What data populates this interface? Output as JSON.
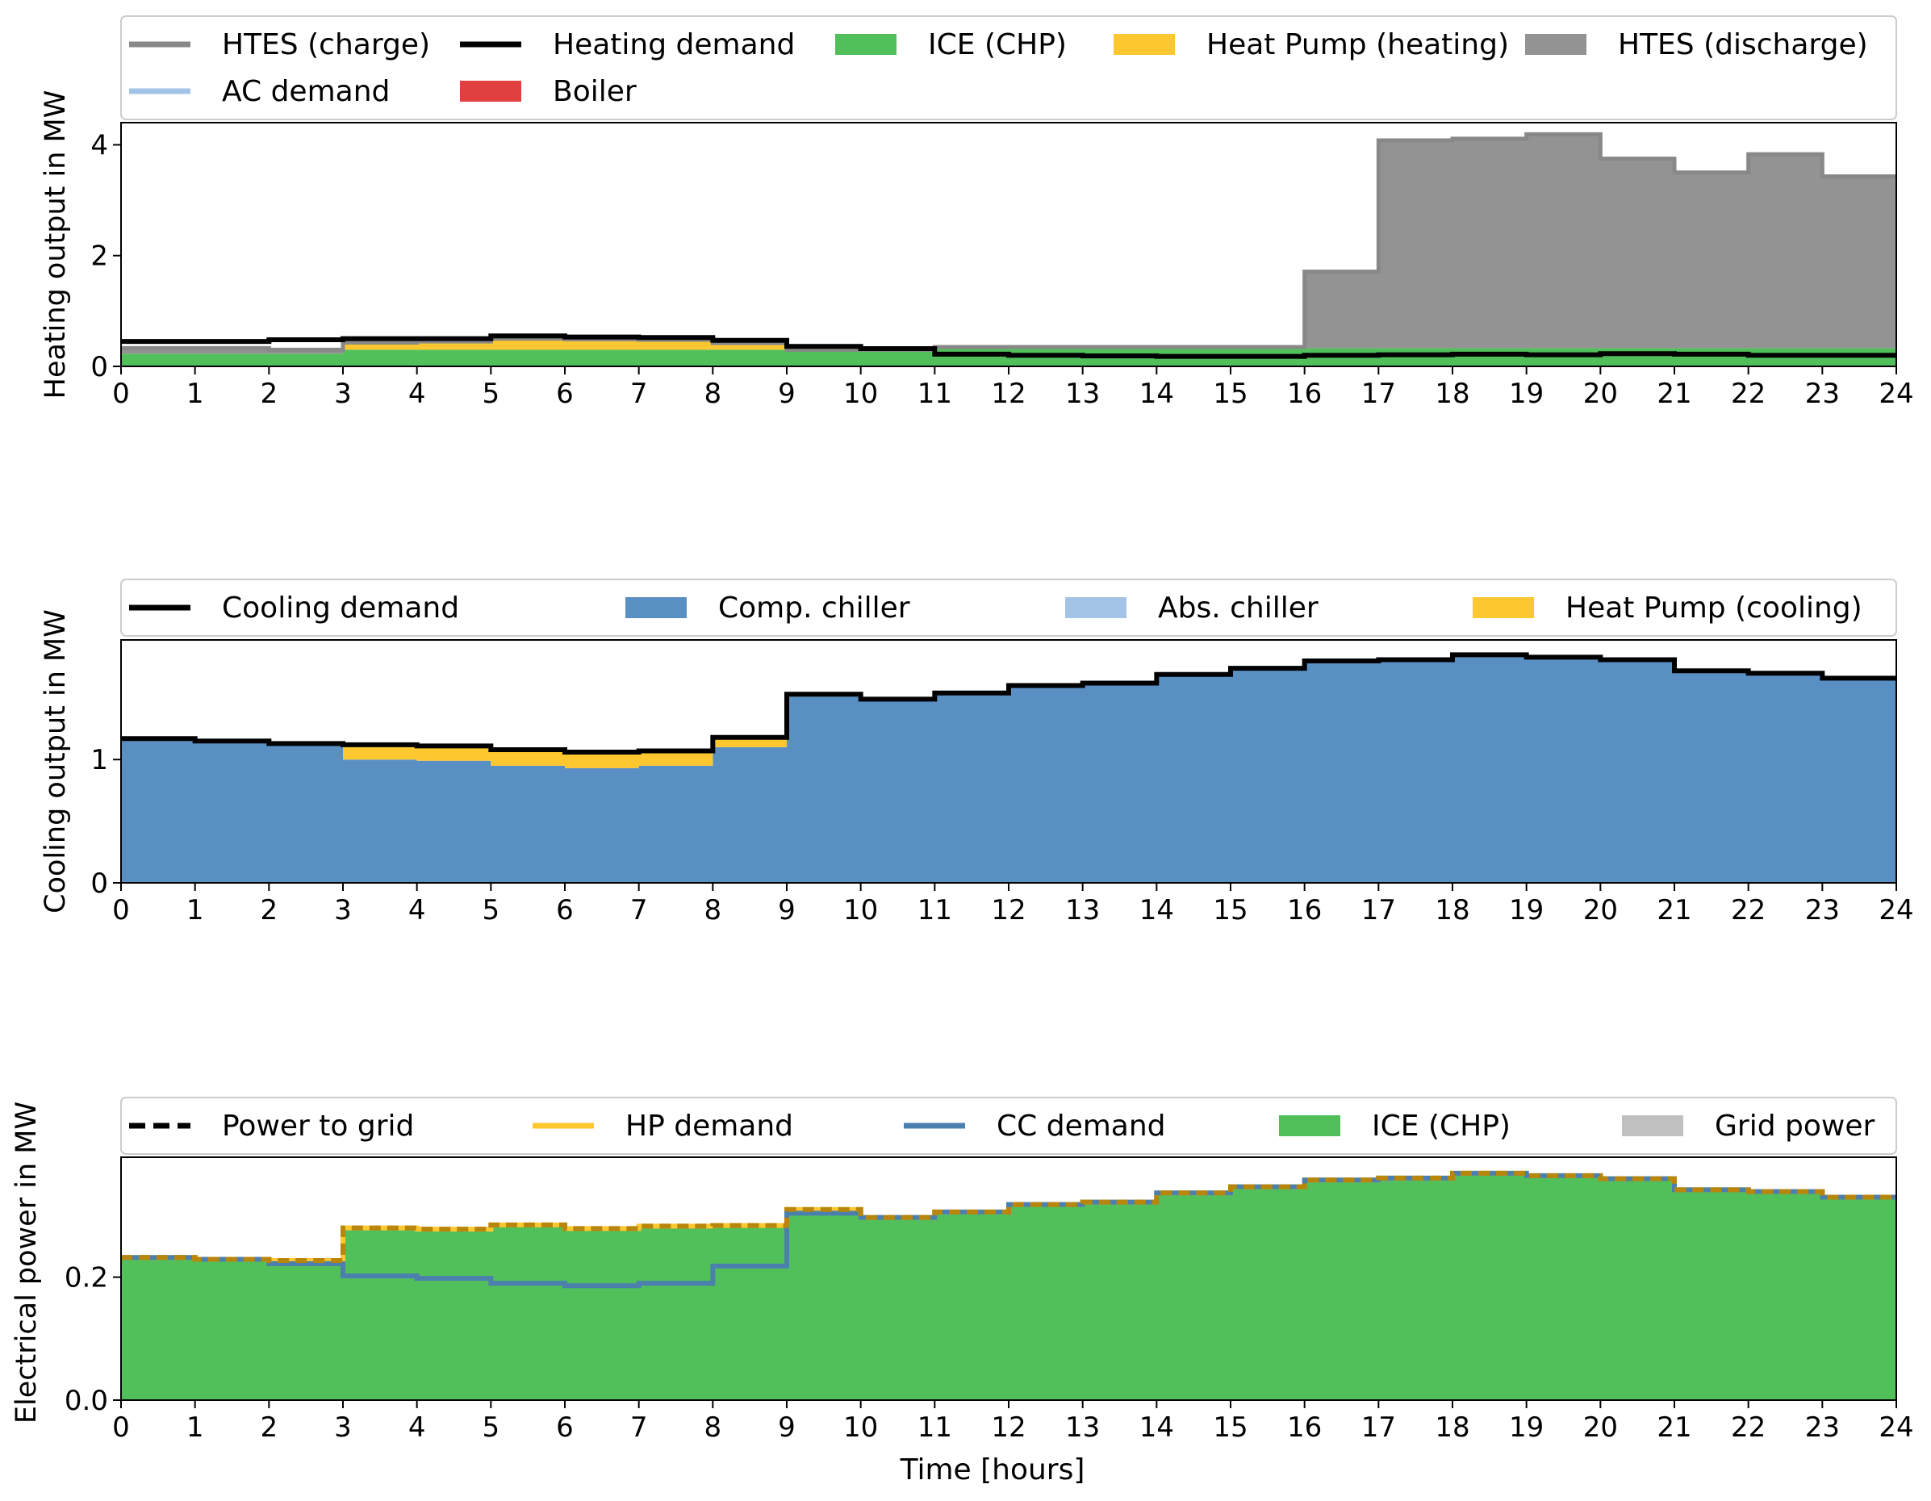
{
  "chart_data": [
    {
      "type": "area",
      "ylabel": "Heating output in MW",
      "xlabel": "",
      "xlim": [
        0,
        24
      ],
      "ylim": [
        0,
        4.4
      ],
      "x_ticks": [
        0,
        1,
        2,
        3,
        4,
        5,
        6,
        7,
        8,
        9,
        10,
        11,
        12,
        13,
        14,
        15,
        16,
        17,
        18,
        19,
        20,
        21,
        22,
        23,
        24
      ],
      "y_ticks": [
        0,
        2,
        4
      ],
      "step": "post",
      "legend_position": "top (above axes)",
      "legend": [
        {
          "label": "HTES (charge)",
          "kind": "line",
          "color": "#888888"
        },
        {
          "label": "Heating demand",
          "kind": "line",
          "color": "#000000"
        },
        {
          "label": "ICE (CHP)",
          "kind": "patch",
          "color": "#51c05a"
        },
        {
          "label": "Heat Pump (heating)",
          "kind": "patch",
          "color": "#fdc730"
        },
        {
          "label": "HTES (discharge)",
          "kind": "patch",
          "color": "#939393"
        },
        {
          "label": "AC demand",
          "kind": "line",
          "color": "#a3c4e6"
        },
        {
          "label": "Boiler",
          "kind": "patch",
          "color": "#e04040"
        }
      ],
      "series": [
        {
          "name": "ICE (CHP)",
          "kind": "stack",
          "values": [
            0.23,
            0.23,
            0.23,
            0.3,
            0.3,
            0.3,
            0.3,
            0.3,
            0.3,
            0.3,
            0.3,
            0.33,
            0.33,
            0.33,
            0.33,
            0.33,
            0.33,
            0.33,
            0.33,
            0.33,
            0.33,
            0.33,
            0.33,
            0.33
          ]
        },
        {
          "name": "Heat Pump (heating)",
          "kind": "stack",
          "values": [
            0,
            0,
            0,
            0.13,
            0.15,
            0.2,
            0.19,
            0.18,
            0.12,
            0,
            0,
            0,
            0,
            0,
            0,
            0,
            0,
            0,
            0,
            0,
            0,
            0,
            0,
            0
          ]
        },
        {
          "name": "HTES (discharge)",
          "kind": "stack",
          "values": [
            0.1,
            0.1,
            0.07,
            0,
            0,
            0,
            0,
            0,
            0,
            0,
            0,
            0.02,
            0.02,
            0.02,
            0.02,
            0.02,
            1.38,
            3.75,
            3.78,
            3.86,
            3.42,
            3.17,
            3.5,
            3.1
          ]
        },
        {
          "name": "HTES (charge)",
          "kind": "line",
          "values": [
            0.33,
            0.33,
            0.3,
            0.43,
            0.45,
            0.5,
            0.49,
            0.48,
            0.42,
            0.3,
            0.3,
            0.35,
            0.35,
            0.35,
            0.35,
            0.35,
            1.71,
            4.08,
            4.11,
            4.19,
            3.75,
            3.5,
            3.83,
            3.43
          ]
        },
        {
          "name": "Heating demand",
          "kind": "line",
          "values": [
            0.45,
            0.45,
            0.48,
            0.5,
            0.5,
            0.55,
            0.53,
            0.52,
            0.47,
            0.36,
            0.32,
            0.22,
            0.2,
            0.19,
            0.18,
            0.18,
            0.2,
            0.21,
            0.22,
            0.21,
            0.23,
            0.22,
            0.2,
            0.2
          ]
        }
      ]
    },
    {
      "type": "area",
      "ylabel": "Cooling output in MW",
      "xlabel": "",
      "xlim": [
        0,
        24
      ],
      "ylim": [
        0,
        1.97
      ],
      "x_ticks": [
        0,
        1,
        2,
        3,
        4,
        5,
        6,
        7,
        8,
        9,
        10,
        11,
        12,
        13,
        14,
        15,
        16,
        17,
        18,
        19,
        20,
        21,
        22,
        23,
        24
      ],
      "y_ticks": [
        0,
        1
      ],
      "step": "post",
      "legend_position": "top (above axes)",
      "legend": [
        {
          "label": "Cooling demand",
          "kind": "line",
          "color": "#000000"
        },
        {
          "label": "Comp. chiller",
          "kind": "patch",
          "color": "#5a8fc3"
        },
        {
          "label": "Abs. chiller",
          "kind": "patch",
          "color": "#a3c4e6"
        },
        {
          "label": "Heat Pump (cooling)",
          "kind": "patch",
          "color": "#fdc730"
        }
      ],
      "series": [
        {
          "name": "Comp. chiller",
          "kind": "stack",
          "values": [
            1.16,
            1.14,
            1.12,
            1.0,
            0.99,
            0.95,
            0.93,
            0.95,
            1.1,
            1.52,
            1.48,
            1.53,
            1.59,
            1.61,
            1.68,
            1.73,
            1.79,
            1.81,
            1.84,
            1.82,
            1.8,
            1.71,
            1.69,
            1.65
          ]
        },
        {
          "name": "Heat Pump (cooling)",
          "kind": "stack",
          "values": [
            0,
            0,
            0,
            0.11,
            0.11,
            0.12,
            0.13,
            0.11,
            0.08,
            0,
            0,
            0,
            0,
            0,
            0,
            0,
            0,
            0,
            0,
            0,
            0,
            0,
            0,
            0
          ]
        },
        {
          "name": "Cooling demand",
          "kind": "line",
          "values": [
            1.17,
            1.15,
            1.13,
            1.12,
            1.11,
            1.08,
            1.06,
            1.07,
            1.18,
            1.53,
            1.49,
            1.54,
            1.6,
            1.62,
            1.69,
            1.74,
            1.8,
            1.81,
            1.85,
            1.83,
            1.81,
            1.72,
            1.7,
            1.66
          ]
        }
      ]
    },
    {
      "type": "area",
      "ylabel": "Electrical power in MW",
      "xlabel": "Time [hours]",
      "xlim": [
        0,
        24
      ],
      "ylim": [
        0,
        0.395
      ],
      "x_ticks": [
        0,
        1,
        2,
        3,
        4,
        5,
        6,
        7,
        8,
        9,
        10,
        11,
        12,
        13,
        14,
        15,
        16,
        17,
        18,
        19,
        20,
        21,
        22,
        23,
        24
      ],
      "y_ticks": [
        0.0,
        0.2
      ],
      "y_tick_labels": [
        "0.0",
        "0.2"
      ],
      "step": "post",
      "legend_position": "top (above axes)",
      "legend": [
        {
          "label": "Power to grid",
          "kind": "dashed",
          "color": "#000000"
        },
        {
          "label": "HP demand",
          "kind": "line",
          "color": "#fdc730"
        },
        {
          "label": "CC demand",
          "kind": "line",
          "color": "#4a7fae"
        },
        {
          "label": "ICE (CHP)",
          "kind": "patch",
          "color": "#51c05a"
        },
        {
          "label": "Grid power",
          "kind": "patch",
          "color": "#c0c0c0"
        }
      ],
      "series": [
        {
          "name": "ICE (CHP)",
          "kind": "stack",
          "values": [
            0.232,
            0.229,
            0.227,
            0.28,
            0.278,
            0.285,
            0.279,
            0.283,
            0.284,
            0.31,
            0.297,
            0.306,
            0.318,
            0.322,
            0.337,
            0.347,
            0.358,
            0.361,
            0.369,
            0.365,
            0.36,
            0.342,
            0.339,
            0.33
          ]
        },
        {
          "name": "HP demand",
          "kind": "line",
          "values": [
            0.232,
            0.229,
            0.227,
            0.28,
            0.278,
            0.285,
            0.279,
            0.283,
            0.284,
            0.31,
            0.297,
            0.306,
            0.318,
            0.322,
            0.337,
            0.347,
            0.358,
            0.361,
            0.369,
            0.365,
            0.36,
            0.342,
            0.339,
            0.33
          ]
        },
        {
          "name": "CC demand",
          "kind": "line",
          "values": [
            0.232,
            0.229,
            0.222,
            0.202,
            0.198,
            0.19,
            0.186,
            0.19,
            0.218,
            0.304,
            0.297,
            0.306,
            0.318,
            0.322,
            0.337,
            0.347,
            0.358,
            0.361,
            0.369,
            0.365,
            0.36,
            0.342,
            0.339,
            0.33
          ]
        },
        {
          "name": "Power to grid",
          "kind": "dashed",
          "values": [
            0.232,
            0.229,
            0.227,
            0.28,
            0.278,
            0.285,
            0.279,
            0.283,
            0.284,
            0.31,
            0.297,
            0.306,
            0.318,
            0.322,
            0.337,
            0.347,
            0.358,
            0.361,
            0.369,
            0.365,
            0.36,
            0.342,
            0.339,
            0.33
          ]
        }
      ]
    }
  ]
}
